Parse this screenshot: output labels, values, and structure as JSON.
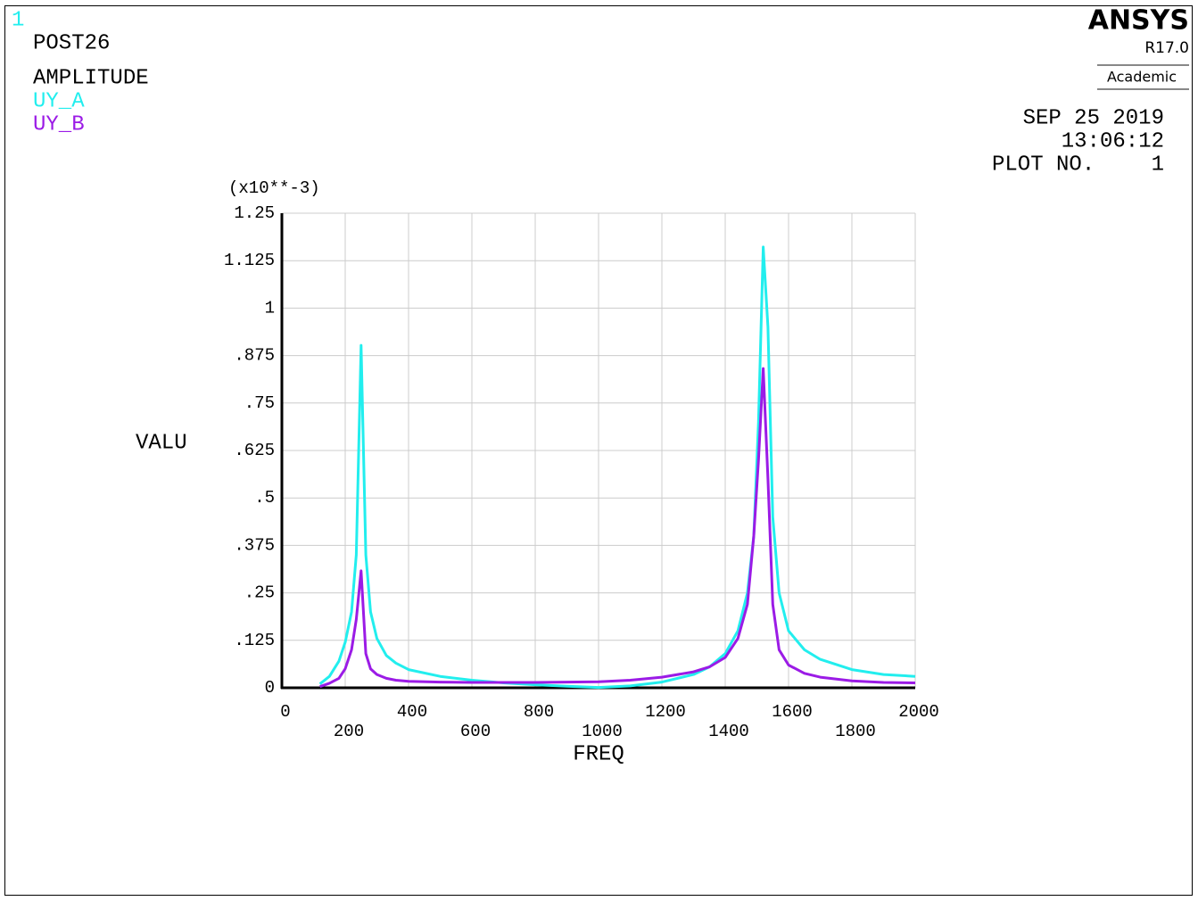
{
  "window_number": "1",
  "logo": {
    "name": "ANSYS",
    "release": "R17.0",
    "edition": "Academic"
  },
  "stamp": {
    "date": "SEP 25 2019",
    "time": "13:06:12",
    "plot_label": "PLOT NO.",
    "plot_number": "1"
  },
  "chart_data": {
    "type": "line",
    "title": "POST26",
    "subtitle": "AMPLITUDE",
    "y_multiplier": "(x10**-3)",
    "xlabel": "FREQ",
    "ylabel": "VALU",
    "grid": true,
    "xlim": [
      0,
      2000
    ],
    "xticks": [
      0,
      200,
      400,
      600,
      800,
      1000,
      1200,
      1400,
      1600,
      1800,
      2000
    ],
    "ylim": [
      0,
      1.25
    ],
    "yticks": [
      0,
      {
        "value": 0.125,
        "label": ".125"
      },
      {
        "value": 0.25,
        "label": ".25"
      },
      {
        "value": 0.375,
        "label": ".375"
      },
      {
        "value": 0.5,
        "label": ".5"
      },
      {
        "value": 0.625,
        "label": ".625"
      },
      {
        "value": 0.75,
        "label": ".75"
      },
      {
        "value": 0.875,
        "label": ".875"
      },
      1,
      1.125,
      1.25
    ],
    "x": [
      120,
      150,
      180,
      200,
      220,
      235,
      250,
      265,
      280,
      300,
      330,
      360,
      400,
      500,
      600,
      700,
      800,
      900,
      1000,
      1100,
      1200,
      1300,
      1350,
      1400,
      1440,
      1470,
      1490,
      1505,
      1520,
      1535,
      1550,
      1570,
      1600,
      1650,
      1700,
      1800,
      1900,
      2000
    ],
    "series": [
      {
        "name": "UY_A",
        "color": "#22eeee",
        "values": [
          0.01,
          0.03,
          0.07,
          0.12,
          0.2,
          0.35,
          0.902,
          0.35,
          0.2,
          0.13,
          0.085,
          0.065,
          0.048,
          0.03,
          0.02,
          0.013,
          0.008,
          0.004,
          0.001,
          0.005,
          0.015,
          0.035,
          0.055,
          0.09,
          0.15,
          0.25,
          0.4,
          0.7,
          1.161,
          0.95,
          0.45,
          0.25,
          0.15,
          0.1,
          0.075,
          0.048,
          0.035,
          0.03
        ]
      },
      {
        "name": "UY_B",
        "color": "#9b1be6",
        "values": [
          0.003,
          0.012,
          0.025,
          0.05,
          0.1,
          0.18,
          0.308,
          0.09,
          0.05,
          0.035,
          0.025,
          0.02,
          0.017,
          0.015,
          0.014,
          0.014,
          0.014,
          0.015,
          0.016,
          0.02,
          0.028,
          0.042,
          0.055,
          0.08,
          0.13,
          0.22,
          0.4,
          0.6,
          0.841,
          0.55,
          0.22,
          0.1,
          0.06,
          0.038,
          0.028,
          0.018,
          0.014,
          0.013
        ]
      }
    ]
  }
}
